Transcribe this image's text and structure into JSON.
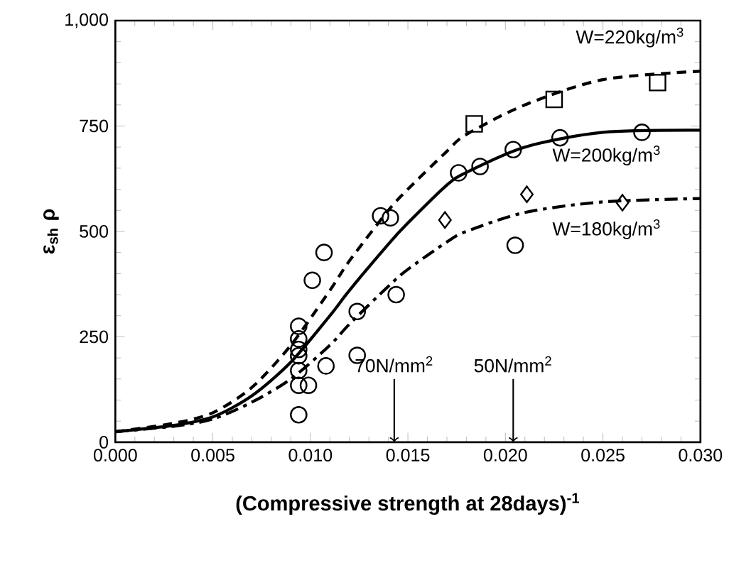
{
  "chart_data": {
    "type": "scatter",
    "xlabel": "(Compressive strength at 28days)$^{-1}$",
    "ylabel": "ε$_{sh}$ ρ",
    "xlim": [
      0,
      0.03
    ],
    "ylim": [
      0,
      1000
    ],
    "xticks": [
      {
        "value": 0,
        "label": "0.000"
      },
      {
        "value": 0.005,
        "label": "0.005"
      },
      {
        "value": 0.01,
        "label": "0.010"
      },
      {
        "value": 0.015,
        "label": "0.015"
      },
      {
        "value": 0.02,
        "label": "0.020"
      },
      {
        "value": 0.025,
        "label": "0.025"
      },
      {
        "value": 0.03,
        "label": "0.030"
      }
    ],
    "yticks": [
      0,
      250,
      500,
      750,
      {
        "value": 1000,
        "label": "1,000"
      }
    ],
    "series": [
      {
        "marker": "square",
        "color": "#000000",
        "x": [
          0.0184,
          0.0225,
          0.0278
        ],
        "values": [
          755,
          813,
          853
        ]
      },
      {
        "marker": "circle",
        "color": "#000000",
        "x": [
          0.0094,
          0.0094,
          0.0094,
          0.0094,
          0.0094,
          0.0094,
          0.0094,
          0.0099,
          0.0101,
          0.0107,
          0.0108,
          0.0124,
          0.0124,
          0.0136,
          0.0141,
          0.0144,
          0.0176,
          0.0187,
          0.0204,
          0.0205,
          0.0228,
          0.027
        ],
        "values": [
          275,
          245,
          220,
          205,
          170,
          135,
          65,
          135,
          384,
          450,
          181,
          310,
          206,
          537,
          532,
          350,
          639,
          654,
          694,
          467,
          722,
          735
        ]
      },
      {
        "marker": "diamond",
        "color": "#000000",
        "x": [
          0.0169,
          0.0211,
          0.026
        ],
        "values": [
          527,
          588,
          568
        ]
      },
      {
        "type": "line",
        "line_style": "dashed",
        "color": "#000000",
        "x": [
          0,
          0.003,
          0.005,
          0.007,
          0.009,
          0.011,
          0.012,
          0.014,
          0.015,
          0.017,
          0.018,
          0.021,
          0.025,
          0.03
        ],
        "values": [
          25,
          45,
          70,
          130,
          230,
          360,
          430,
          550,
          600,
          690,
          730,
          800,
          860,
          880
        ]
      },
      {
        "type": "line",
        "line_style": "solid",
        "color": "#000000",
        "x": [
          0,
          0.003,
          0.005,
          0.007,
          0.009,
          0.011,
          0.012,
          0.014,
          0.015,
          0.017,
          0.018,
          0.021,
          0.025,
          0.03
        ],
        "values": [
          25,
          40,
          60,
          110,
          190,
          300,
          360,
          470,
          520,
          610,
          640,
          700,
          735,
          740
        ]
      },
      {
        "type": "line",
        "line_style": "dashdot",
        "color": "#000000",
        "x": [
          0,
          0.003,
          0.005,
          0.007,
          0.009,
          0.011,
          0.012,
          0.014,
          0.015,
          0.017,
          0.018,
          0.021,
          0.025,
          0.03
        ],
        "values": [
          25,
          38,
          55,
          95,
          150,
          230,
          280,
          370,
          410,
          475,
          500,
          545,
          570,
          578
        ]
      }
    ],
    "annotations": [
      "W=220kg/m$^{3}$",
      "W=200kg/m$^{3}$",
      "W=180kg/m$^{3}$",
      {
        "text": "70N/mm$^{2}$",
        "x": 0.0143,
        "y": 0
      },
      {
        "text": "50N/mm$^{2}$",
        "x": 0.0204,
        "y": 0
      }
    ]
  }
}
